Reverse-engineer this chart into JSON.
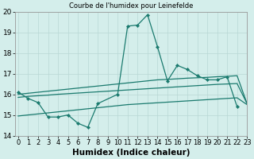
{
  "title": "Courbe de l'humidex pour Leinefelde",
  "xlabel": "Humidex (Indice chaleur)",
  "line1_x": [
    0,
    1,
    2,
    3,
    4,
    5,
    6,
    7,
    8,
    10,
    11,
    12,
    13,
    14,
    15,
    16,
    17,
    18,
    19,
    20,
    21,
    22
  ],
  "line1_y": [
    16.1,
    15.8,
    15.6,
    14.9,
    14.9,
    15.0,
    14.6,
    14.4,
    15.55,
    16.0,
    19.3,
    19.35,
    19.85,
    18.3,
    16.65,
    17.4,
    17.2,
    16.9,
    16.7,
    16.7,
    16.85,
    15.4
  ],
  "line2_x": [
    0,
    1,
    2,
    3,
    4,
    5,
    6,
    7,
    8,
    9,
    10,
    11,
    12,
    13,
    14,
    15,
    16,
    17,
    18,
    19,
    20,
    21,
    22,
    23
  ],
  "line2_y": [
    16.0,
    16.05,
    16.1,
    16.15,
    16.2,
    16.25,
    16.3,
    16.35,
    16.4,
    16.45,
    16.5,
    16.55,
    16.6,
    16.65,
    16.7,
    16.72,
    16.75,
    16.78,
    16.8,
    16.82,
    16.85,
    16.87,
    16.9,
    15.55
  ],
  "line3_x": [
    0,
    1,
    2,
    3,
    4,
    5,
    6,
    7,
    8,
    9,
    10,
    11,
    12,
    13,
    14,
    15,
    16,
    17,
    18,
    19,
    20,
    21,
    22,
    23
  ],
  "line3_y": [
    15.85,
    15.9,
    15.93,
    15.96,
    16.0,
    16.03,
    16.06,
    16.09,
    16.12,
    16.15,
    16.18,
    16.21,
    16.24,
    16.27,
    16.3,
    16.33,
    16.36,
    16.39,
    16.42,
    16.45,
    16.48,
    16.5,
    16.52,
    15.55
  ],
  "line4_x": [
    0,
    1,
    2,
    3,
    4,
    5,
    6,
    7,
    8,
    9,
    10,
    11,
    12,
    13,
    14,
    15,
    16,
    17,
    18,
    19,
    20,
    21,
    22,
    23
  ],
  "line4_y": [
    14.95,
    15.0,
    15.05,
    15.1,
    15.15,
    15.2,
    15.25,
    15.3,
    15.35,
    15.4,
    15.45,
    15.5,
    15.53,
    15.56,
    15.59,
    15.62,
    15.65,
    15.68,
    15.71,
    15.74,
    15.77,
    15.8,
    15.83,
    15.5
  ],
  "ylim": [
    14,
    20
  ],
  "xlim": [
    -0.3,
    23
  ],
  "color": "#1a7a6e",
  "bg_color": "#d4eeeb",
  "grid_color": "#b8d8d5",
  "tick_fontsize": 6,
  "label_fontsize": 7.5,
  "title_fontsize": 6
}
